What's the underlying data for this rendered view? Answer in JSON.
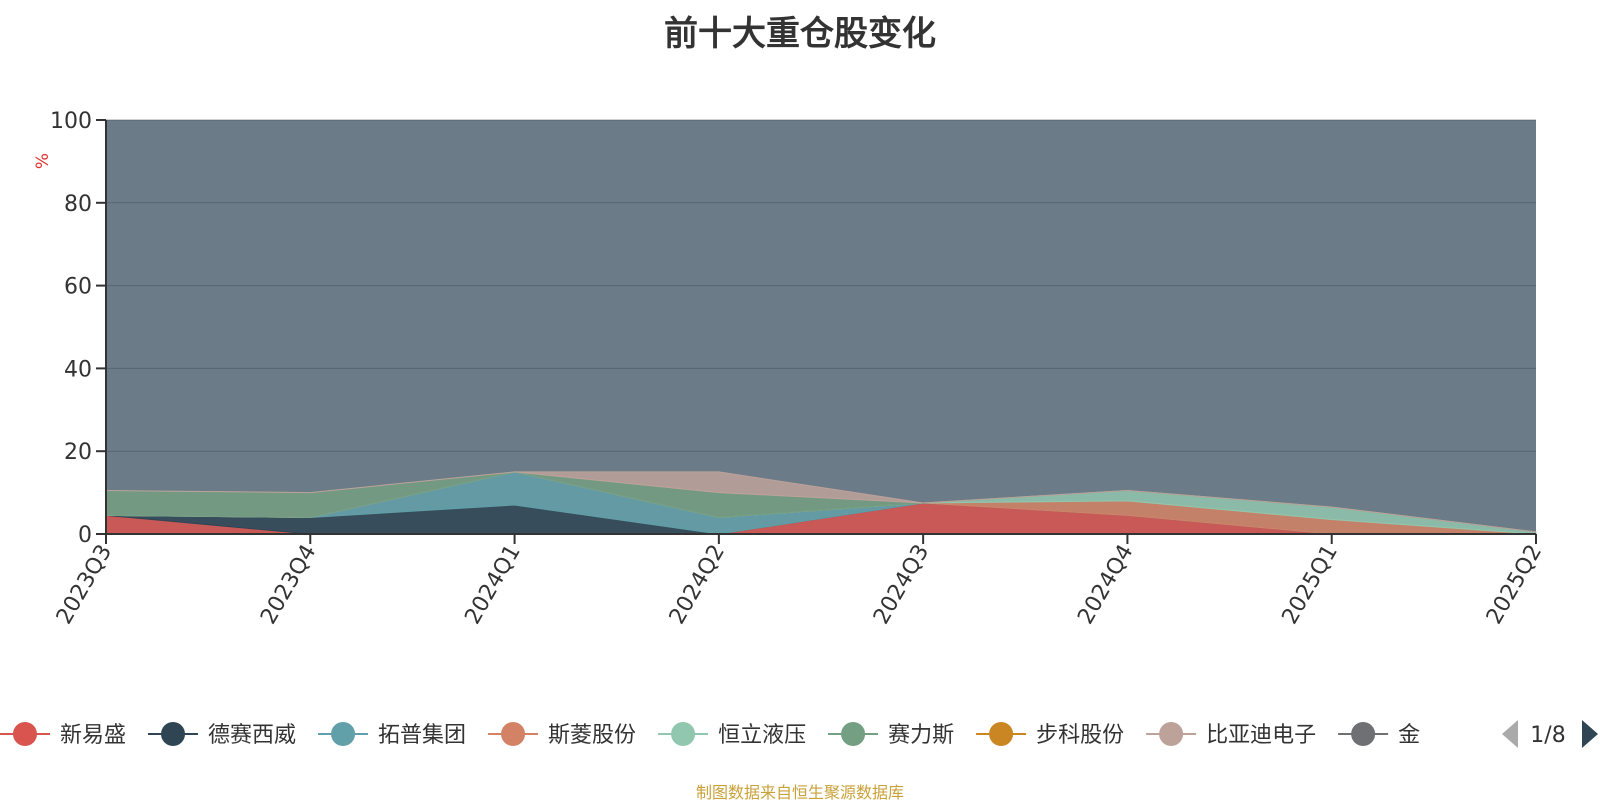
{
  "chart_data": {
    "type": "area",
    "title": "前十大重仓股变化",
    "ylabel": "%",
    "ylim": [
      0,
      100
    ],
    "yticks": [
      0,
      20,
      40,
      60,
      80,
      100
    ],
    "categories": [
      "2023Q3",
      "2023Q4",
      "2024Q1",
      "2024Q2",
      "2024Q3",
      "2024Q4",
      "2025Q1",
      "2025Q2"
    ],
    "stacked_percent": true,
    "grid": true,
    "series": [
      {
        "name": "新易盛",
        "color": "#d9534f",
        "values": [
          4.5,
          0,
          0,
          0,
          7.5,
          4.5,
          0,
          0
        ]
      },
      {
        "name": "德赛西威",
        "color": "#2f4554",
        "values": [
          0,
          4,
          7,
          0,
          0,
          0,
          0,
          0
        ]
      },
      {
        "name": "拓普集团",
        "color": "#61a0a8",
        "values": [
          0,
          0,
          8,
          4,
          0,
          0,
          0,
          0
        ]
      },
      {
        "name": "斯菱股份",
        "color": "#d48265",
        "values": [
          0,
          0,
          0,
          0,
          0,
          3.5,
          3.5,
          0
        ]
      },
      {
        "name": "恒立液压",
        "color": "#91c7ae",
        "values": [
          0,
          0,
          0,
          0,
          0,
          2.5,
          3,
          0.5
        ]
      },
      {
        "name": "赛力斯",
        "color": "#749f83",
        "values": [
          6,
          6,
          0,
          6,
          0,
          0,
          0,
          0
        ]
      },
      {
        "name": "步科股份",
        "color": "#ca8622",
        "values": [
          0,
          0,
          0,
          0,
          0,
          0,
          0,
          0
        ]
      },
      {
        "name": "比亚迪电子",
        "color": "#bda29a",
        "values": [
          0,
          0,
          0,
          5,
          0,
          0,
          0,
          0
        ]
      }
    ],
    "legend_position": "bottom",
    "legend_visible": [
      "新易盛",
      "德赛西威",
      "拓普集团",
      "斯菱股份",
      "恒立液压",
      "赛力斯",
      "步科股份",
      "比亚迪电子",
      "金"
    ],
    "legend_page": "1/8"
  },
  "source_note": "制图数据来自恒生聚源数据库"
}
